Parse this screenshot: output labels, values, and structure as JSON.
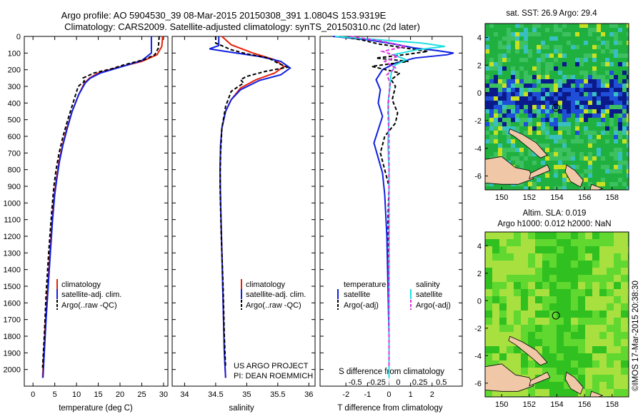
{
  "header": {
    "line1": "Argo profile: AO 5904530_39 08-Mar-2015 20150308_391 1.0804S 153.9319E",
    "line2": "Climatology: CARS2009. Satellite-adjusted climatology: synTS_20150310.nc (2d later)"
  },
  "colors": {
    "climatology": "#e8200a",
    "satellite": "#1020e0",
    "argo": "#000000",
    "satellite_cyan": "#20e0e0",
    "argo_magenta": "#e030e0",
    "land": "#f0c8a8"
  },
  "chart_data": [
    {
      "id": "temperature",
      "type": "line",
      "xlabel": "temperature (deg C)",
      "ylabel": "",
      "xlim": [
        -2,
        31
      ],
      "ylim": [
        2100,
        0
      ],
      "xticks": [
        "0",
        "5",
        "10",
        "15",
        "20",
        "25",
        "30"
      ],
      "xtick_values": [
        0,
        5,
        10,
        15,
        20,
        25,
        30
      ],
      "yticks": [
        "0",
        "100",
        "200",
        "300",
        "400",
        "500",
        "600",
        "700",
        "800",
        "900",
        "1000",
        "1100",
        "1200",
        "1300",
        "1400",
        "1500",
        "1600",
        "1700",
        "1800",
        "1900",
        "2000"
      ],
      "ytick_values": [
        0,
        100,
        200,
        300,
        400,
        500,
        600,
        700,
        800,
        900,
        1000,
        1100,
        1200,
        1300,
        1400,
        1500,
        1600,
        1700,
        1800,
        1900,
        2000
      ],
      "legend": [
        "climatology",
        "satellite-adj. clim.",
        "Argo(..raw -QC)"
      ],
      "series": [
        {
          "name": "climatology",
          "color": "climatology",
          "points": [
            [
              29.8,
              0
            ],
            [
              29.6,
              60
            ],
            [
              28.5,
              110
            ],
            [
              25,
              150
            ],
            [
              19,
              190
            ],
            [
              15,
              220
            ],
            [
              13,
              250
            ],
            [
              11.8,
              280
            ],
            [
              10.5,
              350
            ],
            [
              9,
              450
            ],
            [
              7.8,
              550
            ],
            [
              6.8,
              650
            ],
            [
              6,
              750
            ],
            [
              5.4,
              850
            ],
            [
              4.9,
              950
            ],
            [
              4.4,
              1100
            ],
            [
              3.9,
              1300
            ],
            [
              3.4,
              1500
            ],
            [
              2.9,
              1700
            ],
            [
              2.5,
              1900
            ],
            [
              2.2,
              2050
            ]
          ]
        },
        {
          "name": "satellite-adj. clim.",
          "color": "satellite",
          "points": [
            [
              27.2,
              0
            ],
            [
              27.2,
              100
            ],
            [
              25,
              145
            ],
            [
              20,
              185
            ],
            [
              15.5,
              220
            ],
            [
              13.2,
              250
            ],
            [
              12,
              280
            ],
            [
              10.5,
              350
            ],
            [
              9,
              450
            ],
            [
              7.9,
              550
            ],
            [
              6.9,
              650
            ],
            [
              6.1,
              750
            ],
            [
              5.5,
              850
            ],
            [
              5,
              950
            ],
            [
              4.5,
              1100
            ],
            [
              4,
              1300
            ],
            [
              3.5,
              1500
            ],
            [
              3,
              1700
            ],
            [
              2.6,
              1900
            ],
            [
              2.3,
              2050
            ]
          ]
        },
        {
          "name": "Argo(..raw -QC)",
          "color": "argo",
          "dashed": true,
          "points": [
            [
              29,
              0
            ],
            [
              28.8,
              70
            ],
            [
              28,
              110
            ],
            [
              25.5,
              140
            ],
            [
              21,
              170
            ],
            [
              18,
              195
            ],
            [
              14,
              220
            ],
            [
              11.5,
              250
            ],
            [
              11.8,
              270
            ],
            [
              10.4,
              300
            ],
            [
              9.2,
              400
            ],
            [
              8,
              500
            ],
            [
              6.9,
              600
            ],
            [
              6,
              700
            ],
            [
              5.3,
              800
            ],
            [
              4.8,
              900
            ],
            [
              4.3,
              1050
            ],
            [
              3.6,
              1300
            ],
            [
              3,
              1550
            ],
            [
              2.6,
              1800
            ],
            [
              2.2,
              1990
            ]
          ]
        }
      ]
    },
    {
      "id": "salinity",
      "type": "line",
      "xlabel": "salinity",
      "ylabel": "",
      "xlim": [
        33.8,
        36.1
      ],
      "ylim": [
        2100,
        0
      ],
      "xticks": [
        "34",
        "34.5",
        "35",
        "35.5",
        "36"
      ],
      "xtick_values": [
        34,
        34.5,
        35,
        35.5,
        36
      ],
      "legend": [
        "climatology",
        "satellite-adj. clim.",
        "Argo(..raw -QC)"
      ],
      "annotation": [
        "US ARGO PROJECT",
        "PI: DEAN ROEMMICH"
      ],
      "series": [
        {
          "name": "climatology",
          "color": "climatology",
          "points": [
            [
              34.6,
              0
            ],
            [
              34.75,
              50
            ],
            [
              35.1,
              100
            ],
            [
              35.45,
              140
            ],
            [
              35.6,
              180
            ],
            [
              35.45,
              220
            ],
            [
              35.15,
              260
            ],
            [
              34.9,
              310
            ],
            [
              34.75,
              380
            ],
            [
              34.66,
              450
            ],
            [
              34.6,
              550
            ],
            [
              34.58,
              650
            ],
            [
              34.57,
              800
            ],
            [
              34.58,
              1000
            ],
            [
              34.6,
              1300
            ],
            [
              34.62,
              1600
            ],
            [
              34.64,
              1900
            ],
            [
              34.66,
              2050
            ]
          ]
        },
        {
          "name": "satellite-adj. clim.",
          "color": "satellite",
          "points": [
            [
              34.55,
              0
            ],
            [
              34.55,
              55
            ],
            [
              34.4,
              75
            ],
            [
              34.75,
              95
            ],
            [
              35.2,
              120
            ],
            [
              35.55,
              150
            ],
            [
              35.7,
              190
            ],
            [
              35.55,
              230
            ],
            [
              35.2,
              265
            ],
            [
              34.9,
              320
            ],
            [
              34.75,
              380
            ],
            [
              34.66,
              450
            ],
            [
              34.6,
              550
            ],
            [
              34.58,
              650
            ],
            [
              34.57,
              800
            ],
            [
              34.58,
              1000
            ],
            [
              34.6,
              1300
            ],
            [
              34.62,
              1600
            ],
            [
              34.64,
              1900
            ],
            [
              34.66,
              2050
            ]
          ]
        },
        {
          "name": "Argo(..raw -QC)",
          "color": "argo",
          "dashed": true,
          "points": [
            [
              34.5,
              0
            ],
            [
              34.5,
              40
            ],
            [
              34.75,
              80
            ],
            [
              35.0,
              105
            ],
            [
              35.35,
              130
            ],
            [
              35.5,
              160
            ],
            [
              35.65,
              185
            ],
            [
              35.3,
              210
            ],
            [
              35.0,
              240
            ],
            [
              34.9,
              260
            ],
            [
              34.95,
              280
            ],
            [
              34.75,
              330
            ],
            [
              34.66,
              420
            ],
            [
              34.6,
              550
            ],
            [
              34.58,
              700
            ],
            [
              34.57,
              900
            ],
            [
              34.59,
              1200
            ],
            [
              34.62,
              1500
            ],
            [
              34.64,
              1800
            ],
            [
              34.66,
              1990
            ]
          ]
        }
      ]
    },
    {
      "id": "difference",
      "type": "line",
      "xlabel": "T difference from climatology",
      "x2label": "S difference from climatology",
      "xlim": [
        -3.2,
        3.4
      ],
      "ylim": [
        2100,
        0
      ],
      "xticks": [
        "-2",
        "-1",
        "0",
        "1",
        "2"
      ],
      "xtick_values": [
        -2,
        -1,
        0,
        1,
        2
      ],
      "x2ticks": [
        "-0.5",
        "-0.25",
        "0",
        "0.25",
        "0.5"
      ],
      "x2tick_values": [
        -2,
        -1,
        0,
        1,
        2
      ],
      "legend_temperature": [
        "temperature",
        "satellite",
        "Argo(-adj)"
      ],
      "legend_salinity": [
        "salinity",
        "satellite",
        "Argo(-adj)"
      ],
      "series": [
        {
          "name": "temperature satellite",
          "color": "satellite",
          "points": [
            [
              -2.6,
              0
            ],
            [
              -1,
              20
            ],
            [
              0.2,
              45
            ],
            [
              1.2,
              70
            ],
            [
              2.2,
              85
            ],
            [
              3.0,
              100
            ],
            [
              2.7,
              110
            ],
            [
              1.2,
              130
            ],
            [
              0.3,
              160
            ],
            [
              -0.3,
              200
            ],
            [
              -0.6,
              260
            ],
            [
              -0.4,
              320
            ],
            [
              -0.5,
              400
            ],
            [
              -0.3,
              480
            ],
            [
              -0.5,
              560
            ],
            [
              -0.7,
              640
            ],
            [
              -0.5,
              730
            ],
            [
              -0.3,
              820
            ],
            [
              -0.2,
              950
            ],
            [
              -0.1,
              1200
            ],
            [
              -0.05,
              1500
            ],
            [
              0,
              1800
            ],
            [
              0,
              2050
            ]
          ]
        },
        {
          "name": "temperature Argo(-adj)",
          "color": "argo",
          "dashed": true,
          "points": [
            [
              -2.3,
              0
            ],
            [
              -1.3,
              20
            ],
            [
              -0.5,
              45
            ],
            [
              1.8,
              90
            ],
            [
              0.7,
              110
            ],
            [
              -0.6,
              130
            ],
            [
              0.9,
              150
            ],
            [
              -0.8,
              180
            ],
            [
              0.5,
              220
            ],
            [
              0.1,
              260
            ],
            [
              0.3,
              300
            ],
            [
              0.15,
              380
            ],
            [
              0.4,
              460
            ],
            [
              0.3,
              520
            ],
            [
              -0.2,
              600
            ],
            [
              -0.4,
              700
            ],
            [
              -0.2,
              800
            ],
            [
              0,
              900
            ],
            [
              -0.05,
              1100
            ],
            [
              0,
              1400
            ],
            [
              0,
              1700
            ],
            [
              0,
              1990
            ]
          ]
        },
        {
          "name": "salinity satellite",
          "color": "satellite_cyan",
          "points": [
            [
              -2.5,
              0
            ],
            [
              -1,
              15
            ],
            [
              1.5,
              40
            ],
            [
              2.6,
              60
            ],
            [
              1.3,
              80
            ],
            [
              0.2,
              110
            ],
            [
              0.8,
              140
            ],
            [
              0.3,
              170
            ],
            [
              0.1,
              220
            ],
            [
              0.05,
              300
            ],
            [
              -0.05,
              400
            ],
            [
              0,
              500
            ],
            [
              -0.05,
              650
            ],
            [
              0,
              800
            ],
            [
              0,
              1100
            ],
            [
              0,
              1500
            ],
            [
              0,
              2050
            ]
          ]
        },
        {
          "name": "salinity Argo(-adj)",
          "color": "argo_magenta",
          "dashed": true,
          "points": [
            [
              -1.8,
              0
            ],
            [
              -0.5,
              25
            ],
            [
              0.8,
              60
            ],
            [
              -0.3,
              90
            ],
            [
              0.4,
              120
            ],
            [
              -0.2,
              150
            ],
            [
              0.3,
              190
            ],
            [
              -0.1,
              230
            ],
            [
              0.05,
              280
            ],
            [
              0,
              350
            ],
            [
              -0.05,
              450
            ],
            [
              0,
              600
            ],
            [
              0,
              900
            ],
            [
              0,
              1300
            ],
            [
              0,
              1700
            ],
            [
              0,
              1990
            ]
          ]
        }
      ]
    }
  ],
  "map_sst": {
    "title": "sat. SST: 26.9  Argo: 29.4",
    "xticks": [
      "150",
      "152",
      "154",
      "156",
      "158"
    ],
    "yticks": [
      "4",
      "2",
      "0",
      "-2",
      "-4",
      "-6"
    ],
    "float_lon": 153.93,
    "float_lat": -1.08,
    "xlim": [
      148.8,
      159.2
    ],
    "ylim": [
      -7,
      5
    ]
  },
  "map_sla": {
    "title1": "Altim. SLA: 0.019",
    "title2": "Argo h1000: 0.012  h2000: NaN",
    "xticks": [
      "150",
      "152",
      "154",
      "156",
      "158"
    ],
    "yticks": [
      "4",
      "2",
      "0",
      "-2",
      "-4",
      "-6"
    ],
    "float_lon": 153.93,
    "float_lat": -1.08,
    "xlim": [
      148.8,
      159.2
    ],
    "ylim": [
      -7,
      5
    ]
  },
  "footer": {
    "stamp": "©IMOS 17-Mar-2015 20:38:30"
  }
}
